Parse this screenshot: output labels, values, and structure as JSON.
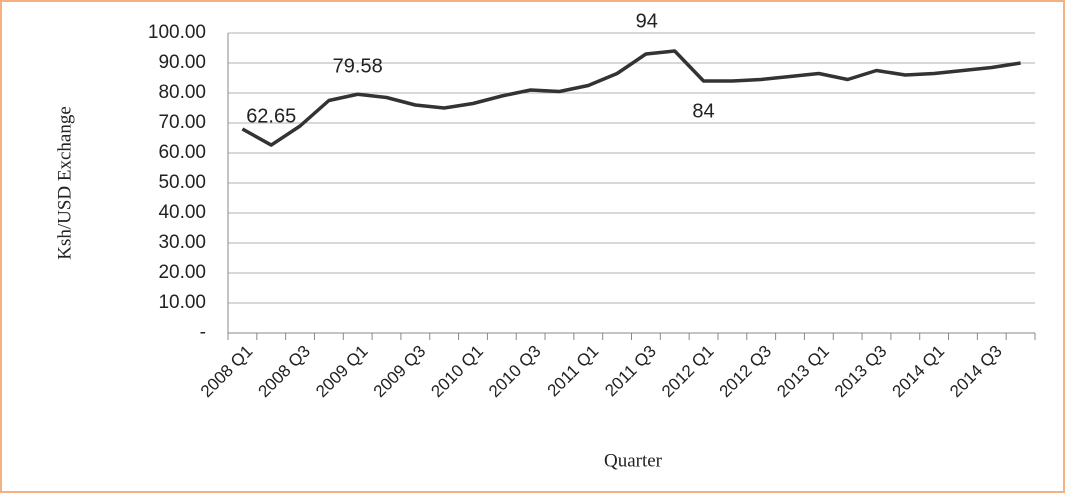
{
  "chart_data": {
    "type": "line",
    "y_label": "Ksh/USD Exchange",
    "x_label": "Quarter",
    "categories": [
      "2008 Q1",
      null,
      "2008 Q3",
      null,
      "2009 Q1",
      null,
      "2009 Q3",
      null,
      "2010 Q1",
      null,
      "2010 Q3",
      null,
      "2011 Q1",
      null,
      "2011 Q3",
      null,
      "2012 Q1",
      null,
      "2012 Q3",
      null,
      "2013 Q1",
      null,
      "2013 Q3",
      null,
      "2014 Q1",
      null,
      "2014 Q3",
      null
    ],
    "series": [
      {
        "name": "Ksh/USD Exchange",
        "color": "#333333",
        "values": [
          68,
          62.65,
          69,
          77.5,
          79.58,
          78.5,
          76,
          75,
          76.5,
          79,
          81,
          80.5,
          82.5,
          86.5,
          93,
          94,
          84,
          84,
          84.5,
          85.5,
          86.5,
          84.5,
          87.5,
          86,
          86.5,
          87.5,
          88.5,
          90
        ],
        "value_labels": [
          null,
          "62.65",
          null,
          null,
          "79.58",
          null,
          null,
          null,
          null,
          null,
          null,
          null,
          null,
          null,
          null,
          "94",
          "84",
          null,
          null,
          null,
          null,
          null,
          null,
          null,
          null,
          null,
          null,
          null
        ]
      }
    ],
    "ylim": [
      0,
      100
    ],
    "yticks": [
      {
        "value": 0,
        "label": "-"
      },
      {
        "value": 10,
        "label": "10.00"
      },
      {
        "value": 20,
        "label": "20.00"
      },
      {
        "value": 30,
        "label": "30.00"
      },
      {
        "value": 40,
        "label": "40.00"
      },
      {
        "value": 50,
        "label": "50.00"
      },
      {
        "value": 60,
        "label": "60.00"
      },
      {
        "value": 70,
        "label": "70.00"
      },
      {
        "value": 80,
        "label": "80.00"
      },
      {
        "value": 90,
        "label": "90.00"
      },
      {
        "value": 100,
        "label": "100.00"
      }
    ],
    "grid": true
  }
}
